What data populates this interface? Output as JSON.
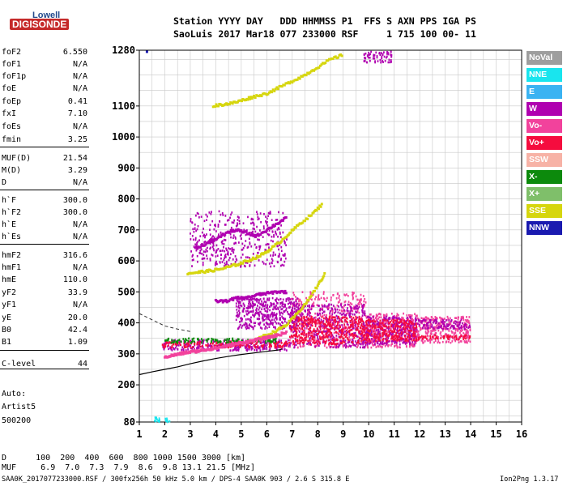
{
  "header": {
    "logo_top": "Lowell",
    "logo_bottom": "DIGISONDE",
    "row1": "Station YYYY DAY   DDD HHMMSS P1  FFS S AXN PPS IGA PS",
    "row2": "SaoLuis 2017 Mar18 077 233000 RSF     1 715 100 00- 11"
  },
  "params": [
    {
      "name": "foF2",
      "value": "6.550"
    },
    {
      "name": "foF1",
      "value": "N/A"
    },
    {
      "name": "foF1p",
      "value": "N/A"
    },
    {
      "name": "foE",
      "value": "N/A"
    },
    {
      "name": "foEp",
      "value": "0.41"
    },
    {
      "name": "fxI",
      "value": "7.10"
    },
    {
      "name": "foEs",
      "value": "N/A"
    },
    {
      "name": "fmin",
      "value": "3.25"
    },
    {
      "name": "MUF(D)",
      "value": "21.54"
    },
    {
      "name": "M(D)",
      "value": "3.29"
    },
    {
      "name": "D",
      "value": "N/A"
    },
    {
      "name": "h`F",
      "value": "300.0"
    },
    {
      "name": "h`F2",
      "value": "300.0"
    },
    {
      "name": "h`E",
      "value": "N/A"
    },
    {
      "name": "h`Es",
      "value": "N/A"
    },
    {
      "name": "hmF2",
      "value": "316.6"
    },
    {
      "name": "hmF1",
      "value": "N/A"
    },
    {
      "name": "hmE",
      "value": "110.0"
    },
    {
      "name": "yF2",
      "value": "33.9"
    },
    {
      "name": "yF1",
      "value": "N/A"
    },
    {
      "name": "yE",
      "value": "20.0"
    },
    {
      "name": "B0",
      "value": "42.4"
    },
    {
      "name": "B1",
      "value": "1.09"
    },
    {
      "name": "C-level",
      "value": "44"
    }
  ],
  "auto": [
    "Auto:",
    "Artist5",
    "500200"
  ],
  "legend": [
    {
      "label": "NoVal",
      "color": "#9e9e9e"
    },
    {
      "label": "NNE",
      "color": "#19e5ee"
    },
    {
      "label": "E",
      "color": "#3ab3f2"
    },
    {
      "label": "W",
      "color": "#b000b0"
    },
    {
      "label": "Vo-",
      "color": "#f2429c"
    },
    {
      "label": "Vo+",
      "color": "#f50c3e"
    },
    {
      "label": "SSW",
      "color": "#f7b2a6"
    },
    {
      "label": "X-",
      "color": "#0c8a0c"
    },
    {
      "label": "X+",
      "color": "#7fbf6a"
    },
    {
      "label": "SSE",
      "color": "#d6d60e"
    },
    {
      "label": "NNW",
      "color": "#1a1ab0"
    }
  ],
  "footer": {
    "d_row": "D      100  200  400  600  800 1000 1500 3000 [km]",
    "muf_row": "MUF     6.9  7.0  7.3  7.9  8.6  9.8 13.1 21.5 [MHz]",
    "file_info": "SAA0K_2017077233000.RSF / 300fx256h 50 kHz 5.0 km / DPS-4 SAA0K 903 / 2.6 S 315.8 E",
    "version": "Ion2Png 1.3.17"
  },
  "chart_data": {
    "type": "scatter",
    "xlim": [
      1,
      16
    ],
    "ylim": [
      80,
      1280
    ],
    "x_ticks": [
      1,
      2,
      3,
      4,
      5,
      6,
      7,
      8,
      9,
      10,
      11,
      12,
      13,
      14,
      15,
      16
    ],
    "y_ticks": [
      80,
      200,
      300,
      400,
      500,
      600,
      700,
      800,
      900,
      1000,
      1100,
      1280
    ],
    "grid": true,
    "profile_line": {
      "x": [
        1.0,
        1.5,
        2.0,
        2.5,
        3.0,
        3.5,
        4.0,
        4.5,
        5.0,
        5.5,
        6.0,
        6.5,
        6.6
      ],
      "y": [
        233,
        242,
        250,
        258,
        268,
        277,
        285,
        292,
        298,
        303,
        308,
        313,
        316
      ]
    },
    "dashed_line": {
      "x": [
        1.0,
        1.5,
        2.0,
        2.5,
        3.0
      ],
      "y": [
        430,
        410,
        390,
        380,
        372
      ]
    },
    "traces": [
      {
        "series": "SSE",
        "points": [
          [
            2.9,
            560
          ],
          [
            3.3,
            563
          ],
          [
            3.7,
            567
          ],
          [
            4.1,
            572
          ],
          [
            4.5,
            580
          ],
          [
            4.9,
            590
          ],
          [
            5.3,
            602
          ],
          [
            5.7,
            615
          ],
          [
            6.1,
            635
          ],
          [
            6.5,
            660
          ],
          [
            6.9,
            690
          ],
          [
            7.3,
            720
          ],
          [
            7.8,
            752
          ],
          [
            8.2,
            785
          ]
        ]
      },
      {
        "series": "SSE",
        "points": [
          [
            3.9,
            1100
          ],
          [
            4.3,
            1105
          ],
          [
            4.7,
            1110
          ],
          [
            5.1,
            1120
          ],
          [
            5.5,
            1130
          ],
          [
            6.0,
            1140
          ],
          [
            6.5,
            1160
          ],
          [
            7.0,
            1180
          ],
          [
            7.5,
            1200
          ],
          [
            8.0,
            1225
          ],
          [
            8.5,
            1250
          ],
          [
            9.0,
            1265
          ]
        ]
      },
      {
        "series": "SSE",
        "points": [
          [
            5.6,
            350
          ],
          [
            6.0,
            360
          ],
          [
            6.4,
            375
          ],
          [
            6.8,
            395
          ],
          [
            7.2,
            430
          ],
          [
            7.6,
            470
          ],
          [
            8.0,
            520
          ],
          [
            8.3,
            560
          ]
        ]
      },
      {
        "series": "Vo-",
        "points": [
          [
            2.0,
            290
          ],
          [
            2.3,
            295
          ],
          [
            2.6,
            300
          ],
          [
            2.9,
            305
          ],
          [
            3.2,
            308
          ],
          [
            3.5,
            312
          ],
          [
            3.8,
            316
          ],
          [
            4.1,
            320
          ],
          [
            4.4,
            325
          ],
          [
            4.7,
            330
          ],
          [
            5.0,
            335
          ],
          [
            5.3,
            340
          ],
          [
            5.6,
            345
          ],
          [
            5.9,
            350
          ],
          [
            6.2,
            356
          ],
          [
            6.5,
            362
          ],
          [
            6.8,
            370
          ]
        ]
      },
      {
        "series": "W",
        "points": [
          [
            3.2,
            640
          ],
          [
            3.6,
            655
          ],
          [
            4.0,
            670
          ],
          [
            4.4,
            690
          ],
          [
            4.8,
            700
          ],
          [
            5.2,
            690
          ],
          [
            5.6,
            680
          ],
          [
            6.0,
            700
          ],
          [
            6.4,
            720
          ],
          [
            6.8,
            740
          ]
        ]
      },
      {
        "series": "W",
        "points": [
          [
            4.0,
            470
          ],
          [
            4.4,
            470
          ],
          [
            4.8,
            480
          ],
          [
            5.2,
            480
          ],
          [
            5.6,
            490
          ],
          [
            6.0,
            495
          ],
          [
            6.4,
            500
          ],
          [
            6.8,
            500
          ]
        ]
      },
      {
        "series": "NNW",
        "points": [
          [
            1.3,
            1275
          ]
        ]
      }
    ],
    "bands": [
      {
        "x0": 1.9,
        "x1": 6.9,
        "y0": 310,
        "y1": 345,
        "series": "W"
      },
      {
        "x0": 1.9,
        "x1": 6.9,
        "y0": 320,
        "y1": 340,
        "series": "Vo+"
      },
      {
        "x0": 2.0,
        "x1": 6.5,
        "y0": 335,
        "y1": 350,
        "series": "X-"
      },
      {
        "x0": 6.9,
        "x1": 9.9,
        "y0": 320,
        "y1": 500,
        "series": "Vo-"
      },
      {
        "x0": 6.9,
        "x1": 9.9,
        "y0": 320,
        "y1": 460,
        "series": "W"
      },
      {
        "x0": 6.9,
        "x1": 9.9,
        "y0": 330,
        "y1": 420,
        "series": "Vo+"
      },
      {
        "x0": 9.9,
        "x1": 11.9,
        "y0": 320,
        "y1": 430,
        "series": "Vo-"
      },
      {
        "x0": 9.9,
        "x1": 11.9,
        "y0": 330,
        "y1": 420,
        "series": "W"
      },
      {
        "x0": 9.9,
        "x1": 11.9,
        "y0": 340,
        "y1": 410,
        "series": "Vo+"
      },
      {
        "x0": 11.9,
        "x1": 14.0,
        "y0": 335,
        "y1": 420,
        "series": "Vo-"
      },
      {
        "x0": 11.9,
        "x1": 14.0,
        "y0": 380,
        "y1": 410,
        "series": "W"
      },
      {
        "x0": 11.9,
        "x1": 14.0,
        "y0": 345,
        "y1": 360,
        "series": "Vo+"
      },
      {
        "x0": 3.0,
        "x1": 6.8,
        "y0": 580,
        "y1": 760,
        "series": "W"
      },
      {
        "x0": 4.8,
        "x1": 7.2,
        "y0": 380,
        "y1": 480,
        "series": "W"
      },
      {
        "x0": 9.8,
        "x1": 10.9,
        "y0": 1240,
        "y1": 1275,
        "series": "W"
      },
      {
        "x0": 1.6,
        "x1": 2.2,
        "y0": 80,
        "y1": 95,
        "series": "NNE"
      }
    ]
  }
}
